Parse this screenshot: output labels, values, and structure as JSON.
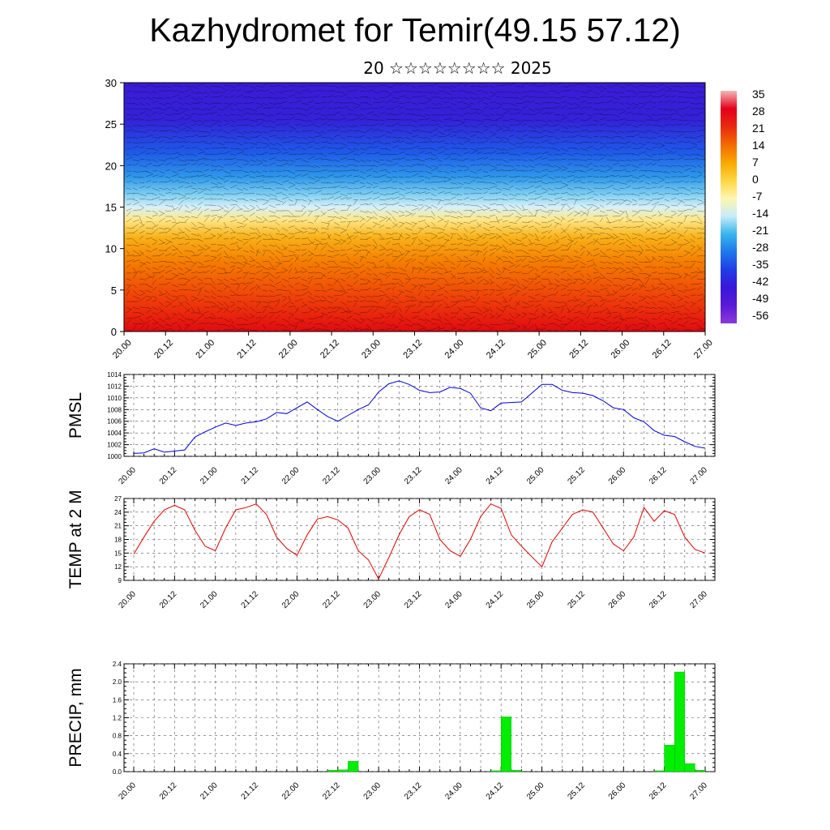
{
  "title": "Kazhydromet for Temir(49.15 57.12)",
  "subtitle": "20 ☆☆☆☆☆☆☆☆ 2025",
  "chart_data": [
    {
      "id": "cross-section",
      "type": "heatmap",
      "description_of_field": "temperature vs height with wind barbs",
      "ylim": [
        0,
        30
      ],
      "yticks": [
        "0",
        "5",
        "10",
        "15",
        "20",
        "25",
        "30"
      ],
      "xticks": [
        "20.00",
        "20.12",
        "21.00",
        "21.12",
        "22.00",
        "22.12",
        "23.00",
        "23.12",
        "24.00",
        "24.12",
        "25.00",
        "25.12",
        "26.00",
        "26.12",
        "27.00"
      ],
      "colorbar": {
        "labels": [
          "35",
          "28",
          "21",
          "14",
          "7",
          "0",
          "-7",
          "-14",
          "-21",
          "-28",
          "-35",
          "-42",
          "-49",
          "-56"
        ],
        "stops": [
          "#f4b8b8",
          "#e3001b",
          "#e82a10",
          "#f26a00",
          "#f9a800",
          "#fdd640",
          "#fff6b0",
          "#c8ecf8",
          "#39b6ec",
          "#1e78ea",
          "#1e3ee6",
          "#3a16d8",
          "#5a1ad6",
          "#8a3ad8"
        ]
      }
    },
    {
      "id": "pmsl",
      "type": "line",
      "ylabel": "PMSL",
      "ylim": [
        1000,
        1014
      ],
      "yticks": [
        "1000",
        "1002",
        "1004",
        "1006",
        "1008",
        "1010",
        "1012",
        "1014"
      ],
      "xticks": [
        "20.00",
        "20.12",
        "21.00",
        "21.12",
        "22.00",
        "22.12",
        "23.00",
        "23.12",
        "24.00",
        "24.12",
        "25.00",
        "25.12",
        "26.00",
        "26.12",
        "27.00"
      ],
      "color": "#0000dd",
      "series": [
        {
          "x": [
            0,
            3,
            6,
            9,
            12,
            15,
            18,
            21,
            24,
            27,
            30,
            33,
            36,
            39,
            42,
            45,
            48,
            51,
            54,
            57,
            60,
            63,
            66,
            69,
            72,
            75,
            78,
            81,
            84,
            87,
            90,
            93,
            96,
            99,
            102,
            105,
            108,
            111,
            114,
            117,
            120,
            123,
            126,
            129,
            132,
            135,
            138,
            141,
            144,
            147,
            150,
            153,
            156,
            159,
            162,
            165,
            168
          ],
          "values": [
            1000.5,
            1000.6,
            1001.3,
            1000.7,
            1000.9,
            1001.1,
            1003.3,
            1004.2,
            1005.0,
            1005.7,
            1005.3,
            1005.7,
            1005.9,
            1006.4,
            1007.5,
            1007.3,
            1008.3,
            1009.3,
            1008.0,
            1006.8,
            1006.0,
            1007.0,
            1008.0,
            1008.8,
            1011.0,
            1012.4,
            1012.9,
            1012.3,
            1011.3,
            1010.9,
            1011.0,
            1011.8,
            1011.6,
            1010.8,
            1008.3,
            1007.8,
            1009.1,
            1009.2,
            1009.3,
            1010.8,
            1012.3,
            1012.3,
            1011.3,
            1010.9,
            1010.8,
            1010.4,
            1009.5,
            1008.3,
            1008.0,
            1006.6,
            1005.9,
            1004.4,
            1003.6,
            1003.4,
            1002.5,
            1001.7,
            1001.4
          ]
        }
      ]
    },
    {
      "id": "temp2m",
      "type": "line",
      "ylabel": "TEMP at 2 M",
      "ylim": [
        9,
        27
      ],
      "yticks": [
        "9",
        "12",
        "15",
        "18",
        "21",
        "24",
        "27"
      ],
      "xticks": [
        "20.00",
        "20.12",
        "21.00",
        "21.12",
        "22.00",
        "22.12",
        "23.00",
        "23.12",
        "24.00",
        "24.12",
        "25.00",
        "25.12",
        "26.00",
        "26.12",
        "27.00"
      ],
      "color": "#dd0000",
      "series": [
        {
          "x": [
            0,
            3,
            6,
            9,
            12,
            15,
            18,
            21,
            24,
            27,
            30,
            33,
            36,
            39,
            42,
            45,
            48,
            51,
            54,
            57,
            60,
            63,
            66,
            69,
            72,
            75,
            78,
            81,
            84,
            87,
            90,
            93,
            96,
            99,
            102,
            105,
            108,
            111,
            114,
            117,
            120,
            123,
            126,
            129,
            132,
            135,
            138,
            141,
            144,
            147,
            150,
            153,
            156,
            159,
            162,
            165,
            168
          ],
          "values": [
            14.8,
            18.5,
            22.0,
            24.5,
            25.5,
            24.5,
            20.0,
            16.5,
            15.5,
            20.5,
            24.5,
            25.0,
            25.8,
            23.5,
            18.5,
            16.0,
            14.5,
            19.0,
            22.5,
            23.0,
            22.3,
            20.5,
            15.5,
            13.5,
            9.3,
            14.0,
            19.0,
            23.0,
            24.5,
            23.5,
            18.0,
            15.5,
            14.3,
            18.0,
            23.0,
            25.8,
            24.8,
            19.0,
            16.5,
            14.2,
            12.0,
            17.5,
            20.5,
            23.5,
            24.5,
            24.0,
            20.5,
            17.0,
            15.5,
            18.5,
            25.0,
            22.0,
            24.3,
            23.5,
            18.5,
            15.8,
            15.0
          ]
        }
      ]
    },
    {
      "id": "precip",
      "type": "bar",
      "ylabel": "PRECIP, mm",
      "ylim": [
        0,
        2.4
      ],
      "yticks": [
        "0.0",
        "0.4",
        "0.8",
        "1.2",
        "1.6",
        "2.0",
        "2.4"
      ],
      "xticks": [
        "20.00",
        "20.12",
        "21.00",
        "21.12",
        "22.00",
        "22.12",
        "23.00",
        "23.12",
        "24.00",
        "24.12",
        "25.00",
        "25.12",
        "26.00",
        "26.12",
        "27.00"
      ],
      "color": "#00ee00",
      "series": [
        {
          "x": [
            60,
            63,
            66,
            108,
            111,
            114,
            156,
            159,
            162,
            165,
            168
          ],
          "values": [
            0.03,
            0.04,
            0.23,
            0.02,
            1.22,
            0.03,
            0.02,
            0.59,
            2.22,
            0.18,
            0.03
          ]
        }
      ]
    }
  ]
}
